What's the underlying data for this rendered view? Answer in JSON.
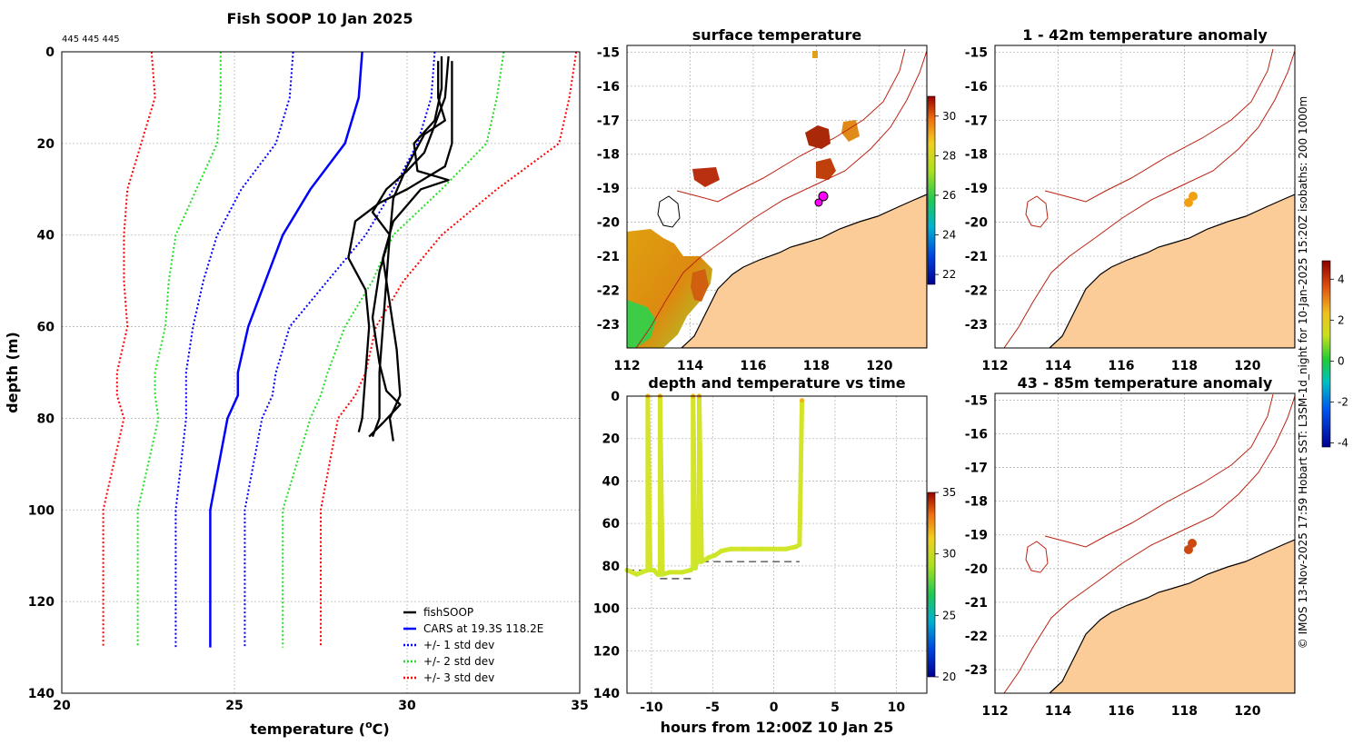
{
  "colors": {
    "fishsoop": "#000000",
    "cars": "#0000ff",
    "std1": "#0000ff",
    "std2": "#22dd22",
    "std3": "#ff0000",
    "land": "#fbcb98",
    "isobath": "#bb2211"
  },
  "chart_data": [
    {
      "id": "profile",
      "type": "line",
      "title": "Fish SOOP 10 Jan 2025",
      "subtitle": "445 445 445",
      "xlabel": "temperature (",
      "xlabel_sup": "o",
      "xlabel_suffix": "C)",
      "ylabel": "depth (m)",
      "xlim": [
        20,
        35
      ],
      "ylim": [
        0,
        140
      ],
      "y_reversed": true,
      "x_ticks": [
        "20",
        "25",
        "30",
        "35"
      ],
      "y_ticks": [
        "0",
        "20",
        "40",
        "60",
        "80",
        "100",
        "120",
        "140"
      ],
      "grid": true,
      "legend_position": "bottom-right",
      "legend": [
        "fishSOOP",
        "CARS at 19.3S 118.2E",
        "+/- 1 std dev",
        "+/- 2 std dev",
        "+/- 3 std dev"
      ],
      "depths": [
        0,
        10,
        20,
        30,
        40,
        50,
        60,
        70,
        75,
        80,
        100,
        130
      ],
      "series": [
        {
          "name": "CARS at 19.3S 118.2E",
          "style": "solid",
          "color_key": "cars",
          "values": [
            28.7,
            28.6,
            28.2,
            27.2,
            26.4,
            25.9,
            25.4,
            25.1,
            25.1,
            24.8,
            24.3,
            24.3
          ]
        },
        {
          "name": "+1 std dev",
          "style": "dotted",
          "color_key": "std1",
          "values": [
            30.8,
            30.7,
            30.3,
            29.6,
            28.8,
            27.7,
            26.6,
            26.2,
            26.1,
            25.8,
            25.3,
            25.3
          ]
        },
        {
          "name": "-1 std dev",
          "style": "dotted",
          "color_key": "std1",
          "values": [
            26.7,
            26.6,
            26.2,
            25.2,
            24.5,
            24.1,
            23.8,
            23.6,
            23.6,
            23.6,
            23.3,
            23.3
          ]
        },
        {
          "name": "+2 std dev",
          "style": "dotted",
          "color_key": "std2",
          "values": [
            32.8,
            32.6,
            32.3,
            31.0,
            29.6,
            29.0,
            28.2,
            27.7,
            27.5,
            27.2,
            26.4,
            26.4
          ]
        },
        {
          "name": "-2 std dev",
          "style": "dotted",
          "color_key": "std2",
          "values": [
            24.6,
            24.6,
            24.5,
            23.9,
            23.3,
            23.1,
            23.0,
            22.7,
            22.7,
            22.8,
            22.2,
            22.2
          ]
        },
        {
          "name": "+3 std dev",
          "style": "dotted",
          "color_key": "std3",
          "values": [
            34.9,
            34.7,
            34.4,
            32.6,
            31.0,
            29.9,
            29.1,
            28.8,
            28.5,
            28.0,
            27.5,
            27.5
          ]
        },
        {
          "name": "-3 std dev",
          "style": "dotted",
          "color_key": "std3",
          "values": [
            22.6,
            22.7,
            22.3,
            21.9,
            21.8,
            21.8,
            21.9,
            21.6,
            21.6,
            21.8,
            21.2,
            21.2
          ]
        }
      ],
      "fishsoop_casts": [
        {
          "name": "cast 1",
          "points": [
            [
              30.9,
              2
            ],
            [
              30.9,
              10
            ],
            [
              31.1,
              15
            ],
            [
              30.5,
              18
            ],
            [
              30.0,
              25
            ],
            [
              29.6,
              32
            ],
            [
              29.5,
              40
            ],
            [
              29.4,
              50
            ],
            [
              29.3,
              60
            ],
            [
              29.2,
              70
            ],
            [
              29.2,
              80
            ],
            [
              29.0,
              84
            ]
          ]
        },
        {
          "name": "cast 2",
          "points": [
            [
              31.3,
              2
            ],
            [
              31.3,
              12
            ],
            [
              31.3,
              20
            ],
            [
              31.1,
              25
            ],
            [
              30.0,
              30
            ],
            [
              29.2,
              33
            ],
            [
              28.5,
              37
            ],
            [
              28.3,
              45
            ],
            [
              28.8,
              52
            ],
            [
              28.9,
              60
            ],
            [
              28.8,
              70
            ],
            [
              28.7,
              80
            ],
            [
              28.6,
              83
            ]
          ]
        },
        {
          "name": "cast 3",
          "points": [
            [
              31.0,
              1
            ],
            [
              31.0,
              8
            ],
            [
              30.8,
              15
            ],
            [
              30.2,
              20
            ],
            [
              30.3,
              26
            ],
            [
              31.2,
              28
            ],
            [
              30.4,
              30
            ],
            [
              29.6,
              37
            ],
            [
              29.3,
              45
            ],
            [
              29.5,
              55
            ],
            [
              29.7,
              65
            ],
            [
              29.8,
              75
            ],
            [
              29.5,
              80
            ],
            [
              29.6,
              85
            ]
          ]
        },
        {
          "name": "cast 4",
          "points": [
            [
              31.2,
              1
            ],
            [
              31.1,
              10
            ],
            [
              30.7,
              18
            ],
            [
              30.5,
              22
            ],
            [
              30.0,
              26
            ],
            [
              29.4,
              30
            ],
            [
              29.0,
              35
            ],
            [
              29.5,
              40
            ],
            [
              29.2,
              48
            ],
            [
              29.0,
              58
            ],
            [
              29.2,
              68
            ],
            [
              29.4,
              74
            ],
            [
              29.8,
              77
            ],
            [
              29.3,
              81
            ],
            [
              28.9,
              84
            ]
          ]
        }
      ]
    },
    {
      "id": "surface",
      "type": "heatmap",
      "title": "surface temperature",
      "xlim": [
        112,
        121.5
      ],
      "ylim": [
        -23.7,
        -14.8
      ],
      "x_ticks": [
        "112",
        "114",
        "116",
        "118",
        "120"
      ],
      "y_ticks": [
        "-15",
        "-16",
        "-17",
        "-18",
        "-19",
        "-20",
        "-21",
        "-22",
        "-23"
      ],
      "colorbar": {
        "range": [
          21.5,
          31
        ],
        "ticks": [
          "30",
          "28",
          "26",
          "24",
          "22"
        ]
      },
      "station": {
        "lon": 118.2,
        "lat": -19.3
      }
    },
    {
      "id": "timeseries",
      "type": "scatter",
      "title": "depth and temperature vs time",
      "xlabel": "hours from 12:00Z 10 Jan 25",
      "xlim": [
        -12,
        12.5
      ],
      "ylim": [
        0,
        140
      ],
      "y_reversed": true,
      "x_ticks": [
        "-10",
        "-5",
        "0",
        "5",
        "10"
      ],
      "y_ticks": [
        "0",
        "20",
        "40",
        "60",
        "80",
        "100",
        "120",
        "140"
      ],
      "colorbar": {
        "range": [
          20,
          35
        ],
        "ticks": [
          "35",
          "30",
          "25",
          "20"
        ]
      },
      "segments": [
        {
          "t": [
            -12.0,
            -11.2,
            -10.8,
            -10.3,
            -10.3,
            -10.1,
            -9.8
          ],
          "depth": [
            82,
            84,
            83,
            82,
            0,
            82,
            82
          ]
        },
        {
          "t": [
            -9.8,
            -9.5,
            -9.3,
            -9.3,
            -9.1,
            -8.5,
            -7.5,
            -6.8,
            -6.6,
            -6.6,
            -6.4,
            -6.3,
            -6.1,
            -6.1,
            -5.9
          ],
          "depth": [
            82,
            84,
            84,
            0,
            84,
            83,
            83,
            82,
            81,
            0,
            81,
            78,
            78,
            0,
            78
          ]
        },
        {
          "t": [
            -5.9,
            -5.3,
            -4.8,
            -4.3,
            -3.5,
            -2.5,
            -1.0,
            0.0,
            1.0,
            1.8,
            2.1,
            2.3
          ],
          "depth": [
            78,
            76,
            75,
            73,
            72,
            72,
            72,
            72,
            72,
            71,
            70,
            2
          ]
        }
      ],
      "bottom_segments": [
        {
          "t": [
            -12.0,
            -10.3
          ],
          "depth": 82
        },
        {
          "t": [
            -9.3,
            -6.6
          ],
          "depth": 86
        },
        {
          "t": [
            -5.9,
            2.1
          ],
          "depth": 78
        }
      ]
    },
    {
      "id": "anom1",
      "type": "heatmap",
      "title": "1 - 42m temperature anomaly",
      "xlim": [
        112,
        121.5
      ],
      "ylim": [
        -23.7,
        -14.8
      ],
      "x_ticks": [
        "112",
        "114",
        "116",
        "118",
        "120"
      ],
      "y_ticks": [
        "-15",
        "-16",
        "-17",
        "-18",
        "-19",
        "-20",
        "-21",
        "-22",
        "-23"
      ],
      "colorbar": {
        "range": [
          -4.2,
          4.9
        ],
        "ticks": [
          "4",
          "2",
          "0",
          "-2",
          "-4"
        ]
      }
    },
    {
      "id": "anom2",
      "type": "heatmap",
      "title": "43 - 85m temperature anomaly",
      "xlim": [
        112,
        121.5
      ],
      "ylim": [
        -23.7,
        -14.8
      ],
      "x_ticks": [
        "112",
        "114",
        "116",
        "118",
        "120"
      ],
      "y_ticks": [
        "-15",
        "-16",
        "-17",
        "-18",
        "-19",
        "-20",
        "-21",
        "-22",
        "-23"
      ]
    }
  ],
  "footer_caption": "© IMOS 13-Nov-2025 17:59 Hobart SST: L3SM-1d_night for 10-Jan-2025 15:20Z isobaths: 200  1000m"
}
